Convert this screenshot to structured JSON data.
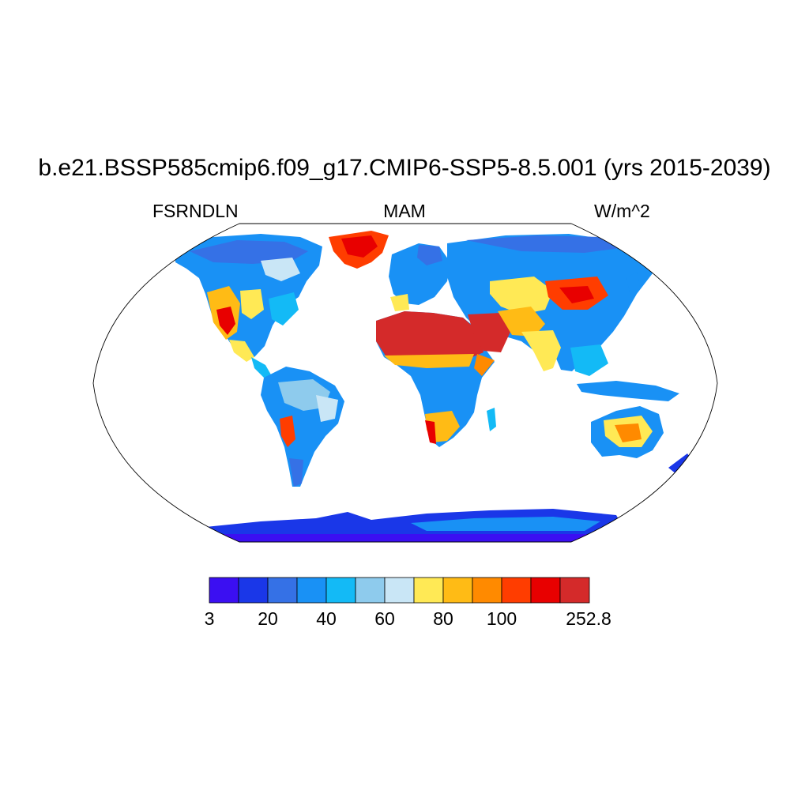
{
  "title": "b.e21.BSSP585cmip6.f09_g17.CMIP6-SSP5-8.5.001 (yrs 2015-2039)",
  "variable": "FSRNDLN",
  "season": "MAM",
  "units": "W/m^2",
  "colorbar": {
    "colors": [
      "#3b0ff2",
      "#1a37e8",
      "#3571e6",
      "#1991f5",
      "#13baf6",
      "#8ecbed",
      "#c9e6f6",
      "#ffe955",
      "#ffbb15",
      "#ff8a00",
      "#ff3d00",
      "#e80000",
      "#d42a2a"
    ],
    "tick_labels": [
      "3",
      "20",
      "40",
      "60",
      "80",
      "100",
      "252.8"
    ]
  }
}
